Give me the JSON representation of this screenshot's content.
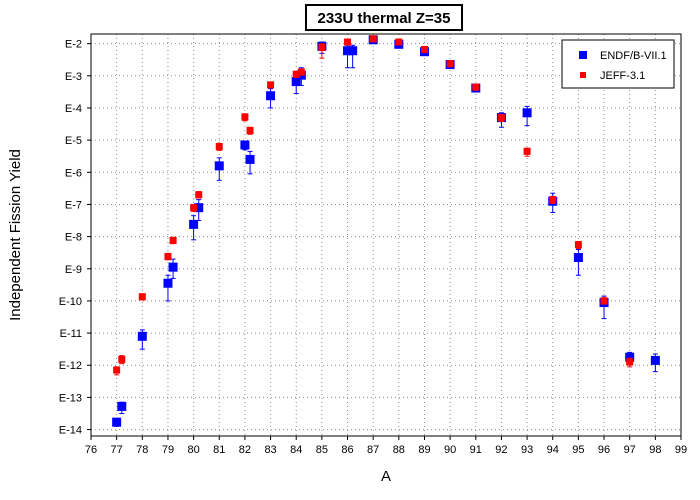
{
  "chart_data": {
    "type": "scatter",
    "title": "233U thermal Z=35",
    "xlabel": "A",
    "ylabel": "Independent Fission Yield",
    "xlim": [
      76,
      99
    ],
    "ylim_exponent": [
      -14.2,
      -1.7
    ],
    "y_scale": "log",
    "x_ticks": [
      "76",
      "77",
      "78",
      "79",
      "80",
      "81",
      "82",
      "83",
      "84",
      "85",
      "86",
      "87",
      "88",
      "89",
      "90",
      "91",
      "92",
      "93",
      "94",
      "95",
      "96",
      "97",
      "98",
      "99"
    ],
    "y_ticks": [
      {
        "exp": -2,
        "label": "E-2"
      },
      {
        "exp": -3,
        "label": "E-3"
      },
      {
        "exp": -4,
        "label": "E-4"
      },
      {
        "exp": -5,
        "label": "E-5"
      },
      {
        "exp": -6,
        "label": "E-6"
      },
      {
        "exp": -7,
        "label": "E-7"
      },
      {
        "exp": -8,
        "label": "E-8"
      },
      {
        "exp": -9,
        "label": "E-9"
      },
      {
        "exp": -10,
        "label": "E-10"
      },
      {
        "exp": -11,
        "label": "E-11"
      },
      {
        "exp": -12,
        "label": "E-12"
      },
      {
        "exp": -13,
        "label": "E-13"
      },
      {
        "exp": -14,
        "label": "E-14"
      }
    ],
    "grid": true,
    "legend_position": "top-right",
    "series": [
      {
        "name": "ENDF/B-VII.1",
        "color": "#0000ff",
        "marker": "square",
        "points": [
          {
            "x": 77.0,
            "y": -13.77,
            "lo": -13.9,
            "hi": -13.65
          },
          {
            "x": 77.2,
            "y": -13.28,
            "lo": -13.5,
            "hi": -13.15
          },
          {
            "x": 78.0,
            "y": -11.1,
            "lo": -11.5,
            "hi": -10.9
          },
          {
            "x": 79.0,
            "y": -9.45,
            "lo": -10.0,
            "hi": -9.2
          },
          {
            "x": 79.2,
            "y": -8.95,
            "lo": -9.3,
            "hi": -8.7
          },
          {
            "x": 80.0,
            "y": -7.62,
            "lo": -8.1,
            "hi": -7.35
          },
          {
            "x": 80.2,
            "y": -7.1,
            "lo": -7.5,
            "hi": -6.85
          },
          {
            "x": 81.0,
            "y": -5.8,
            "lo": -6.25,
            "hi": -5.55
          },
          {
            "x": 82.0,
            "y": -5.15,
            "lo": -5.3,
            "hi": -5.05
          },
          {
            "x": 82.2,
            "y": -5.6,
            "lo": -6.05,
            "hi": -5.35
          },
          {
            "x": 83.0,
            "y": -3.62,
            "lo": -4.0,
            "hi": -3.4
          },
          {
            "x": 84.0,
            "y": -3.18,
            "lo": -3.55,
            "hi": -2.95
          },
          {
            "x": 84.2,
            "y": -2.98,
            "lo": -3.3,
            "hi": -2.75
          },
          {
            "x": 85.0,
            "y": -2.08,
            "lo": -2.3,
            "hi": -1.95
          },
          {
            "x": 86.0,
            "y": -2.22,
            "lo": -2.75,
            "hi": -2.05
          },
          {
            "x": 86.2,
            "y": -2.22,
            "lo": -2.75,
            "hi": -2.05
          },
          {
            "x": 87.0,
            "y": -1.88,
            "lo": -1.98,
            "hi": -1.8
          },
          {
            "x": 88.0,
            "y": -2.02,
            "lo": -2.12,
            "hi": -1.95
          },
          {
            "x": 89.0,
            "y": -2.25,
            "lo": -2.35,
            "hi": -2.15
          },
          {
            "x": 90.0,
            "y": -2.65,
            "lo": -2.75,
            "hi": -2.55
          },
          {
            "x": 91.0,
            "y": -3.38,
            "lo": -3.5,
            "hi": -3.3
          },
          {
            "x": 92.0,
            "y": -4.3,
            "lo": -4.6,
            "hi": -4.15
          },
          {
            "x": 93.0,
            "y": -4.15,
            "lo": -4.55,
            "hi": -3.95
          },
          {
            "x": 94.0,
            "y": -6.9,
            "lo": -7.25,
            "hi": -6.65
          },
          {
            "x": 95.0,
            "y": -8.65,
            "lo": -9.2,
            "hi": -8.4
          },
          {
            "x": 96.0,
            "y": -10.05,
            "lo": -10.55,
            "hi": -9.85
          },
          {
            "x": 97.0,
            "y": -11.75,
            "lo": -11.95,
            "hi": -11.6
          },
          {
            "x": 98.0,
            "y": -11.85,
            "lo": -12.2,
            "hi": -11.65
          }
        ]
      },
      {
        "name": "JEFF-3.1",
        "color": "#ff0000",
        "marker": "square",
        "points": [
          {
            "x": 77.0,
            "y": -12.15,
            "lo": -12.3,
            "hi": -12.05
          },
          {
            "x": 77.2,
            "y": -11.82,
            "lo": -11.95,
            "hi": -11.7
          },
          {
            "x": 78.0,
            "y": -9.87,
            "lo": -9.97,
            "hi": -9.78
          },
          {
            "x": 79.0,
            "y": -8.62,
            "lo": -8.72,
            "hi": -8.52
          },
          {
            "x": 79.2,
            "y": -8.12,
            "lo": -8.22,
            "hi": -8.02
          },
          {
            "x": 80.0,
            "y": -7.1,
            "lo": -7.22,
            "hi": -7.0
          },
          {
            "x": 80.2,
            "y": -6.7,
            "lo": -6.8,
            "hi": -6.6
          },
          {
            "x": 81.0,
            "y": -5.2,
            "lo": -5.32,
            "hi": -5.1
          },
          {
            "x": 82.0,
            "y": -4.28,
            "lo": -4.4,
            "hi": -4.18
          },
          {
            "x": 82.2,
            "y": -4.7,
            "lo": -4.82,
            "hi": -4.6
          },
          {
            "x": 83.0,
            "y": -3.28,
            "lo": -3.38,
            "hi": -3.2
          },
          {
            "x": 84.0,
            "y": -2.95,
            "lo": -3.05,
            "hi": -2.87
          },
          {
            "x": 84.2,
            "y": -2.88,
            "lo": -2.98,
            "hi": -2.8
          },
          {
            "x": 85.0,
            "y": -2.12,
            "lo": -2.45,
            "hi": -2.0
          },
          {
            "x": 86.0,
            "y": -1.95,
            "lo": -2.03,
            "hi": -1.88
          },
          {
            "x": 87.0,
            "y": -1.85,
            "lo": -1.93,
            "hi": -1.78
          },
          {
            "x": 88.0,
            "y": -1.95,
            "lo": -2.03,
            "hi": -1.88
          },
          {
            "x": 89.0,
            "y": -2.18,
            "lo": -2.28,
            "hi": -2.1
          },
          {
            "x": 90.0,
            "y": -2.62,
            "lo": -2.72,
            "hi": -2.55
          },
          {
            "x": 91.0,
            "y": -3.35,
            "lo": -3.45,
            "hi": -3.27
          },
          {
            "x": 92.0,
            "y": -4.3,
            "lo": -4.42,
            "hi": -4.2
          },
          {
            "x": 93.0,
            "y": -5.35,
            "lo": -5.5,
            "hi": -5.25
          },
          {
            "x": 94.0,
            "y": -6.85,
            "lo": -6.97,
            "hi": -6.75
          },
          {
            "x": 95.0,
            "y": -8.25,
            "lo": -8.37,
            "hi": -8.15
          },
          {
            "x": 96.0,
            "y": -10.0,
            "lo": -10.1,
            "hi": -9.9
          },
          {
            "x": 97.0,
            "y": -11.9,
            "lo": -12.05,
            "hi": -11.78
          }
        ]
      }
    ]
  }
}
